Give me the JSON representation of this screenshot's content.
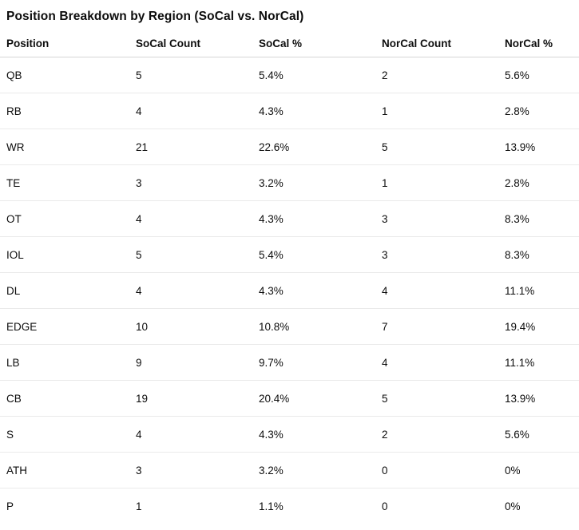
{
  "title": "Position Breakdown by Region (SoCal vs. NorCal)",
  "table": {
    "columns": [
      "Position",
      "SoCal Count",
      "SoCal %",
      "NorCal Count",
      "NorCal %"
    ],
    "rows": [
      [
        "QB",
        "5",
        "5.4%",
        "2",
        "5.6%"
      ],
      [
        "RB",
        "4",
        "4.3%",
        "1",
        "2.8%"
      ],
      [
        "WR",
        "21",
        "22.6%",
        "5",
        "13.9%"
      ],
      [
        "TE",
        "3",
        "3.2%",
        "1",
        "2.8%"
      ],
      [
        "OT",
        "4",
        "4.3%",
        "3",
        "8.3%"
      ],
      [
        "IOL",
        "5",
        "5.4%",
        "3",
        "8.3%"
      ],
      [
        "DL",
        "4",
        "4.3%",
        "4",
        "11.1%"
      ],
      [
        "EDGE",
        "10",
        "10.8%",
        "7",
        "19.4%"
      ],
      [
        "LB",
        "9",
        "9.7%",
        "4",
        "11.1%"
      ],
      [
        "CB",
        "19",
        "20.4%",
        "5",
        "13.9%"
      ],
      [
        "S",
        "4",
        "4.3%",
        "2",
        "5.6%"
      ],
      [
        "ATH",
        "3",
        "3.2%",
        "0",
        "0%"
      ],
      [
        "P",
        "1",
        "1.1%",
        "0",
        "0%"
      ]
    ]
  },
  "chart_data": {
    "type": "table",
    "title": "Position Breakdown by Region (SoCal vs. NorCal)",
    "categories": [
      "QB",
      "RB",
      "WR",
      "TE",
      "OT",
      "IOL",
      "DL",
      "EDGE",
      "LB",
      "CB",
      "S",
      "ATH",
      "P"
    ],
    "series": [
      {
        "name": "SoCal Count",
        "values": [
          5,
          4,
          21,
          3,
          4,
          5,
          4,
          10,
          9,
          19,
          4,
          3,
          1
        ]
      },
      {
        "name": "SoCal %",
        "values": [
          5.4,
          4.3,
          22.6,
          3.2,
          4.3,
          5.4,
          4.3,
          10.8,
          9.7,
          20.4,
          4.3,
          3.2,
          1.1
        ]
      },
      {
        "name": "NorCal Count",
        "values": [
          2,
          1,
          5,
          1,
          3,
          3,
          4,
          7,
          4,
          5,
          2,
          0,
          0
        ]
      },
      {
        "name": "NorCal %",
        "values": [
          5.6,
          2.8,
          13.9,
          2.8,
          8.3,
          8.3,
          11.1,
          19.4,
          11.1,
          13.9,
          5.6,
          0,
          0
        ]
      }
    ]
  },
  "colors": {
    "background": "#ffffff",
    "text": "#0d0d0d",
    "header_divider": "#d6d6d6",
    "row_divider": "#eaeaea"
  }
}
